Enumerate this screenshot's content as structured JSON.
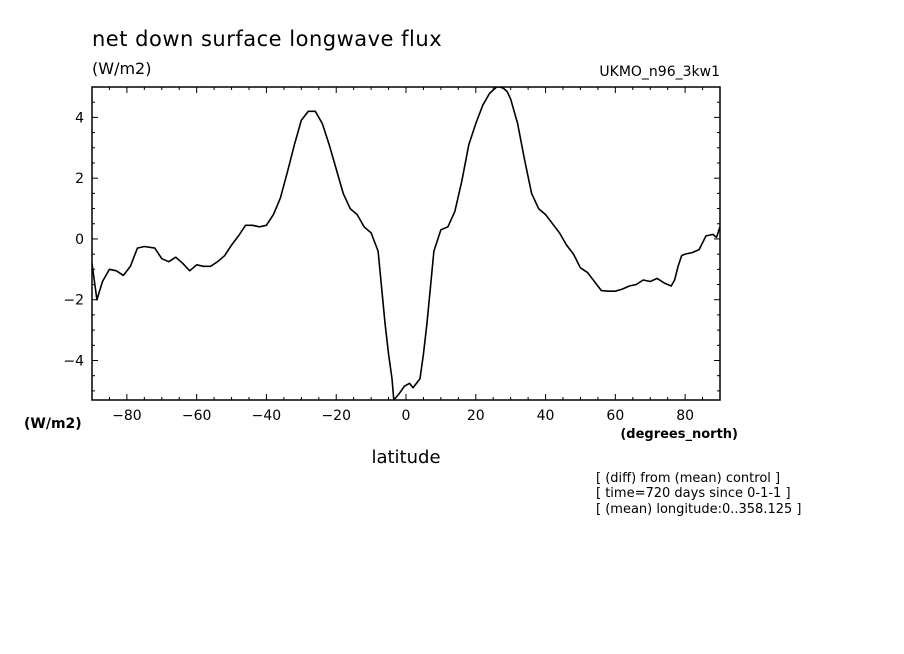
{
  "chart_data": {
    "type": "line",
    "title": "net down surface longwave flux",
    "units_label": "(W/m2)",
    "dataset_label": "UKMO_n96_3kw1",
    "y_units_label": "(W/m2)",
    "x_units_label": "(degrees_north)",
    "xlabel": "latitude",
    "xlim": [
      -90,
      90
    ],
    "ylim": [
      -5.3,
      5.0
    ],
    "x_ticks": [
      -80,
      -60,
      -40,
      -20,
      0,
      20,
      40,
      60,
      80
    ],
    "x_tick_labels": [
      "−80",
      "−60",
      "−40",
      "−20",
      "0",
      "20",
      "40",
      "60",
      "80"
    ],
    "y_ticks": [
      -4,
      -2,
      0,
      2,
      4
    ],
    "y_tick_labels": [
      "−4",
      "−2",
      "0",
      "2",
      "4"
    ],
    "grid": false,
    "series": [
      {
        "x": [
          -90,
          -88.6,
          -87,
          -85,
          -83,
          -81,
          -79,
          -77,
          -75,
          -72,
          -70,
          -68,
          -66,
          -64,
          -62,
          -60,
          -58,
          -56,
          -54,
          -52,
          -50,
          -48,
          -46,
          -44,
          -42,
          -40,
          -38,
          -36,
          -34,
          -32,
          -30,
          -28,
          -26,
          -24,
          -22,
          -20,
          -18,
          -16,
          -14,
          -12,
          -10,
          -8,
          -7,
          -6,
          -5,
          -4,
          -3.5,
          -2,
          -0.5,
          1,
          2,
          3,
          4,
          5,
          6,
          8,
          10,
          12,
          14,
          16,
          18,
          20,
          22,
          24,
          26,
          27,
          28,
          29,
          30,
          32,
          34,
          36,
          38,
          40,
          42,
          44,
          46,
          48,
          50,
          52,
          54,
          56,
          58,
          60,
          62,
          64,
          66,
          68,
          70,
          72,
          74,
          76,
          77,
          78,
          79,
          80,
          82,
          84,
          86,
          88,
          89,
          90
        ],
        "y": [
          -0.8,
          -2.0,
          -1.4,
          -1.0,
          -1.05,
          -1.2,
          -0.9,
          -0.3,
          -0.25,
          -0.3,
          -0.65,
          -0.75,
          -0.6,
          -0.8,
          -1.05,
          -0.85,
          -0.9,
          -0.9,
          -0.75,
          -0.55,
          -0.2,
          0.1,
          0.45,
          0.45,
          0.4,
          0.45,
          0.8,
          1.35,
          2.2,
          3.1,
          3.9,
          4.2,
          4.2,
          3.8,
          3.1,
          2.3,
          1.5,
          1.0,
          0.8,
          0.4,
          0.2,
          -0.4,
          -1.6,
          -2.8,
          -3.8,
          -4.6,
          -5.3,
          -5.1,
          -4.85,
          -4.75,
          -4.9,
          -4.75,
          -4.6,
          -3.8,
          -2.8,
          -0.4,
          0.3,
          0.4,
          0.9,
          1.9,
          3.1,
          3.8,
          4.4,
          4.8,
          5.0,
          5.0,
          4.95,
          4.85,
          4.6,
          3.8,
          2.6,
          1.5,
          1.0,
          0.8,
          0.5,
          0.2,
          -0.2,
          -0.5,
          -0.95,
          -1.1,
          -1.4,
          -1.7,
          -1.72,
          -1.72,
          -1.65,
          -1.55,
          -1.5,
          -1.35,
          -1.4,
          -1.3,
          -1.45,
          -1.55,
          -1.35,
          -0.9,
          -0.55,
          -0.5,
          -0.45,
          -0.35,
          0.1,
          0.15,
          0.05,
          0.4
        ]
      }
    ],
    "annotations": [
      "[ (diff) from (mean) control ]",
      "[ time=720 days since 0-1-1 ]",
      "[ (mean) longitude:0..358.125 ]"
    ]
  }
}
